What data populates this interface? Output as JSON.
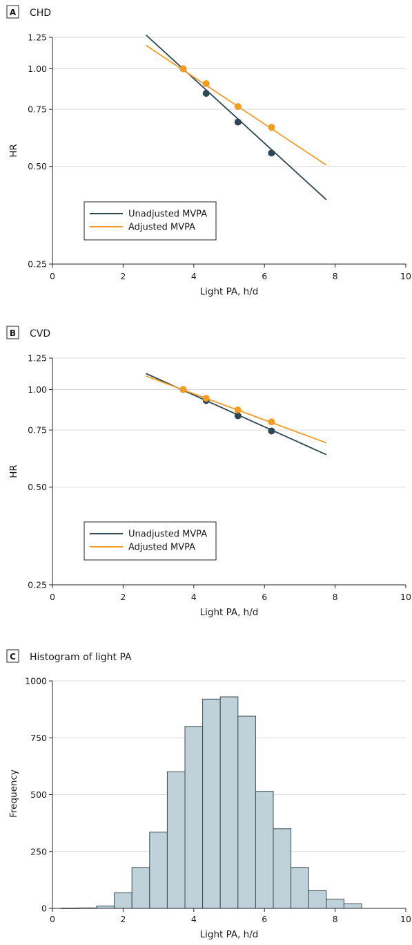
{
  "colors": {
    "unadjusted": "#2c4653",
    "adjusted": "#f39c22",
    "bar_fill": "#bfd1d9",
    "bar_stroke": "#3a4a52",
    "axis": "#222222",
    "grid": "#d9d9d9"
  },
  "chart_data": [
    {
      "type": "line",
      "panel_letter": "A",
      "title": "CHD",
      "xlabel": "Light PA, h/d",
      "ylabel": "HR",
      "xlim": [
        0,
        10
      ],
      "ylim": [
        0.25,
        1.25
      ],
      "y_scale": "log",
      "x_ticks": [
        0,
        2,
        4,
        6,
        8,
        10
      ],
      "x_tick_labels": [
        "0",
        "2",
        "4",
        "6",
        "8",
        "10"
      ],
      "y_ticks": [
        0.25,
        0.5,
        0.75,
        1.0,
        1.25
      ],
      "y_tick_labels": [
        "0.25",
        "0.50",
        "0.75",
        "1.00",
        "1.25"
      ],
      "grid": "horizontal",
      "legend_position": "lower-left",
      "series": [
        {
          "name": "Unadjusted MVPA",
          "color_key": "unadjusted",
          "line": {
            "x": [
              2.65,
              7.75
            ],
            "y": [
              1.27,
              0.395
            ]
          },
          "points": {
            "x": [
              3.7,
              4.35,
              5.25,
              6.2
            ],
            "y": [
              1.0,
              0.84,
              0.685,
              0.55
            ]
          }
        },
        {
          "name": "Adjusted MVPA",
          "color_key": "adjusted",
          "line": {
            "x": [
              2.65,
              7.75
            ],
            "y": [
              1.18,
              0.505
            ]
          },
          "points": {
            "x": [
              3.7,
              4.35,
              5.25,
              6.2
            ],
            "y": [
              1.0,
              0.9,
              0.765,
              0.66
            ]
          }
        }
      ]
    },
    {
      "type": "line",
      "panel_letter": "B",
      "title": "CVD",
      "xlabel": "Light PA, h/d",
      "ylabel": "HR",
      "xlim": [
        0,
        10
      ],
      "ylim": [
        0.25,
        1.25
      ],
      "y_scale": "log",
      "x_ticks": [
        0,
        2,
        4,
        6,
        8,
        10
      ],
      "x_tick_labels": [
        "0",
        "2",
        "4",
        "6",
        "8",
        "10"
      ],
      "y_ticks": [
        0.25,
        0.5,
        0.75,
        1.0,
        1.25
      ],
      "y_tick_labels": [
        "0.25",
        "0.50",
        "0.75",
        "1.00",
        "1.25"
      ],
      "grid": "horizontal",
      "legend_position": "lower-left",
      "series": [
        {
          "name": "Unadjusted MVPA",
          "color_key": "unadjusted",
          "line": {
            "x": [
              2.65,
              7.75
            ],
            "y": [
              1.12,
              0.63
            ]
          },
          "points": {
            "x": [
              3.7,
              4.35,
              5.25,
              6.2
            ],
            "y": [
              1.0,
              0.925,
              0.83,
              0.745
            ]
          }
        },
        {
          "name": "Adjusted MVPA",
          "color_key": "adjusted",
          "line": {
            "x": [
              2.65,
              7.75
            ],
            "y": [
              1.1,
              0.685
            ]
          },
          "points": {
            "x": [
              3.7,
              4.35,
              5.25,
              6.2
            ],
            "y": [
              1.0,
              0.94,
              0.865,
              0.795
            ]
          }
        }
      ]
    },
    {
      "type": "bar",
      "panel_letter": "C",
      "title": "Histogram of light PA",
      "xlabel": "Light PA, h/d",
      "ylabel": "Frequency",
      "xlim": [
        0,
        10
      ],
      "ylim": [
        0,
        1000
      ],
      "x_ticks": [
        0,
        2,
        4,
        6,
        8,
        10
      ],
      "x_tick_labels": [
        "0",
        "2",
        "4",
        "6",
        "8",
        "10"
      ],
      "y_ticks": [
        0,
        250,
        500,
        750,
        1000
      ],
      "y_tick_labels": [
        "0",
        "250",
        "500",
        "750",
        "1000"
      ],
      "grid": "horizontal",
      "bin_width": 0.5,
      "bin_starts": [
        0.25,
        0.75,
        1.25,
        1.75,
        2.25,
        2.75,
        3.25,
        3.75,
        4.25,
        4.75,
        5.25,
        5.75,
        6.25,
        6.75,
        7.25,
        7.75,
        8.25
      ],
      "values": [
        1,
        2,
        10,
        68,
        180,
        335,
        600,
        800,
        920,
        930,
        845,
        515,
        350,
        180,
        78,
        40,
        20
      ]
    }
  ]
}
